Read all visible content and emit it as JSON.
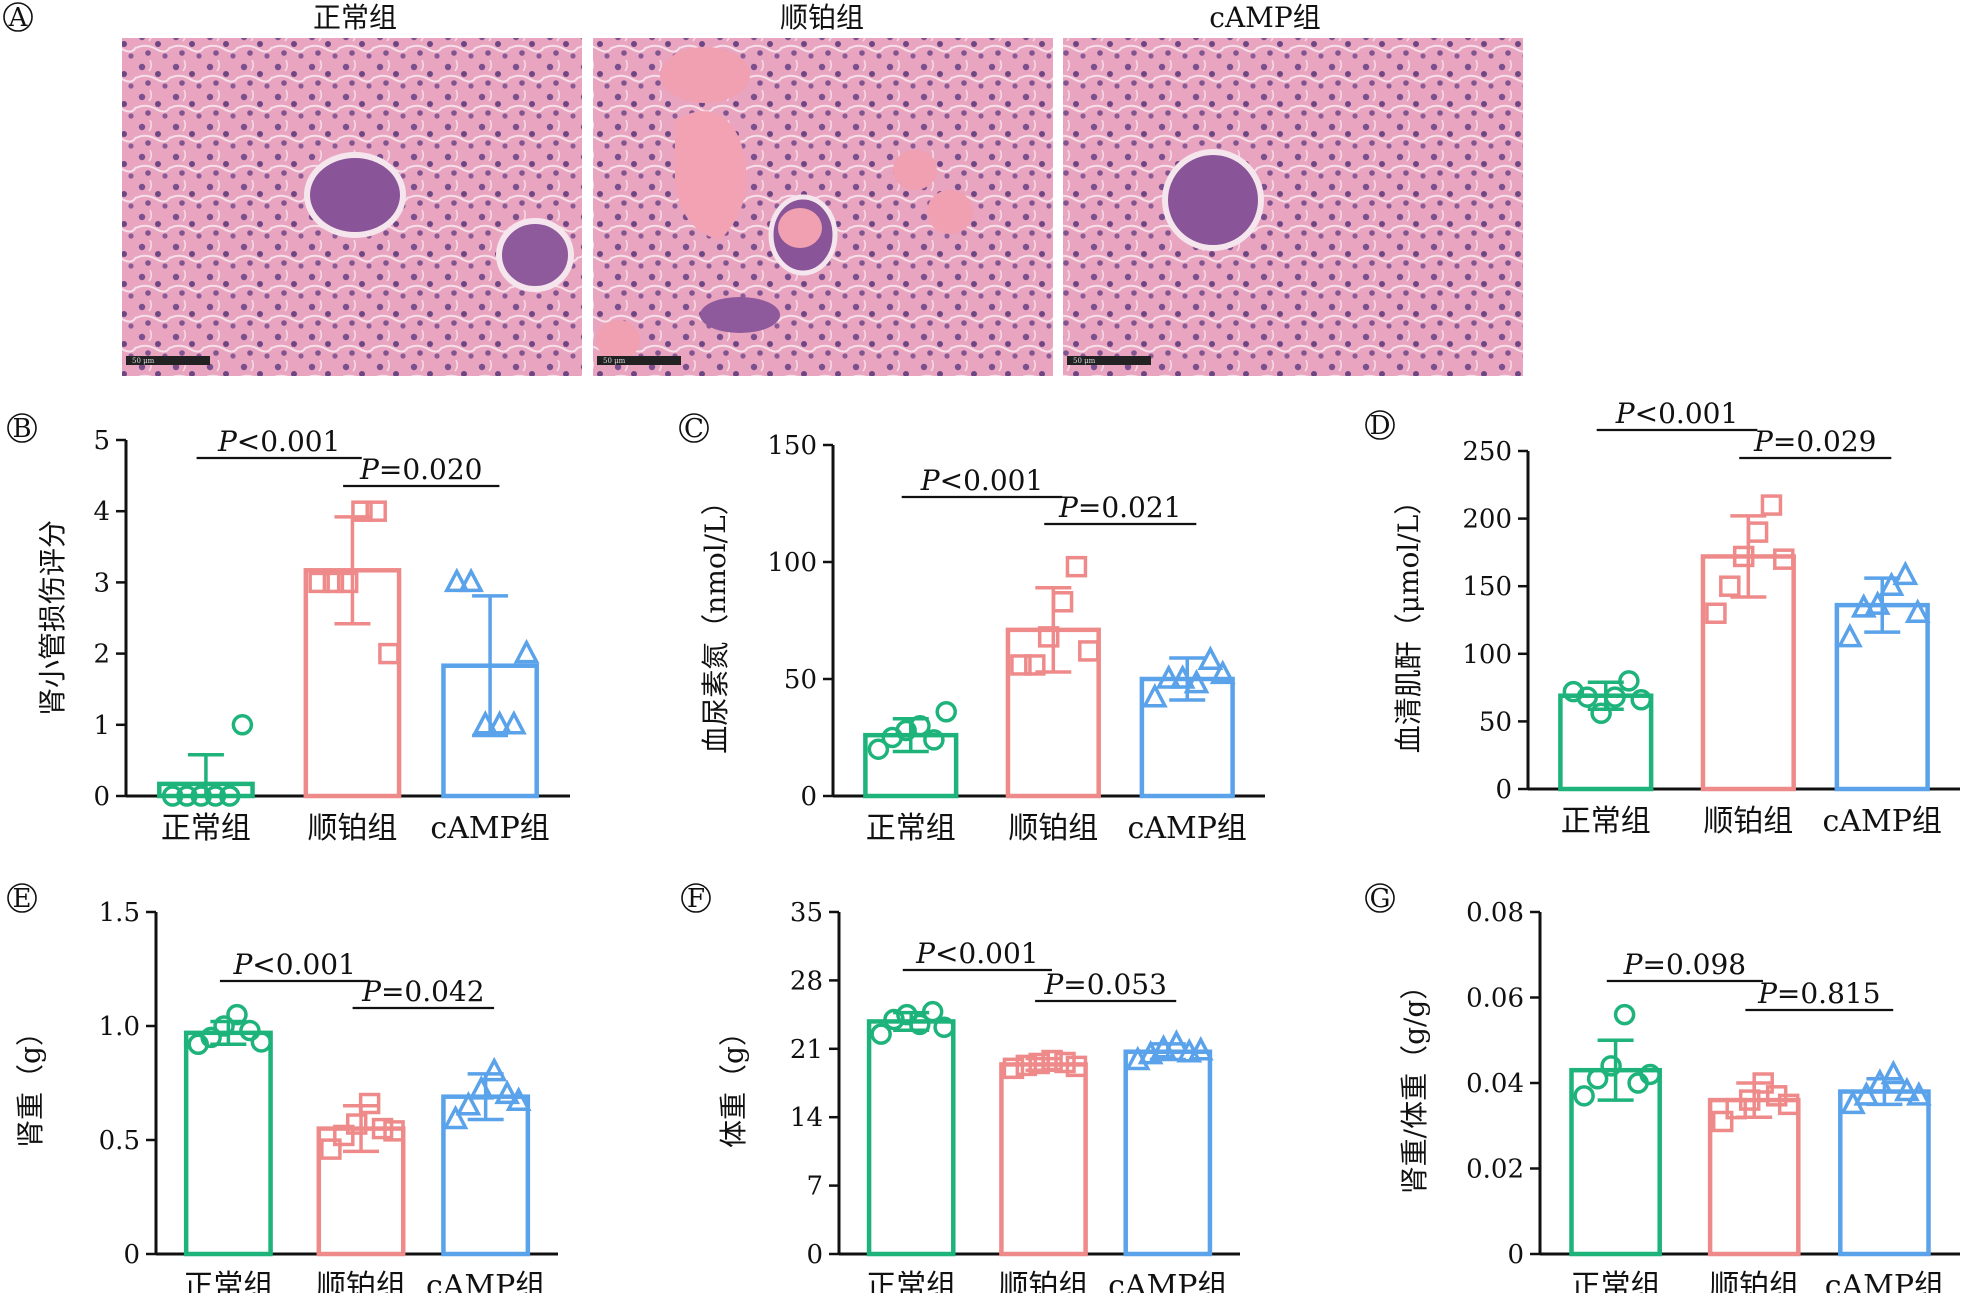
{
  "panel_a": {
    "letter": "A",
    "titles": [
      "正常组",
      "顺铂组",
      "cAMP组"
    ],
    "scale_bar_label": "50 μm"
  },
  "colors": {
    "normal": "#1db37a",
    "cisplatin": "#ef8a8a",
    "camp": "#5aa2ea"
  },
  "chart_data": [
    {
      "id": "B",
      "letter": "B",
      "type": "bar",
      "ylabel": "肾小管损伤评分",
      "categories": [
        "正常组",
        "顺铂组",
        "cAMP组"
      ],
      "ylim": [
        0,
        5
      ],
      "yticks": [
        0,
        1,
        2,
        3,
        4,
        5
      ],
      "values": [
        0.17,
        3.17,
        1.83
      ],
      "errors": [
        0.41,
        0.75,
        0.98
      ],
      "points": [
        [
          0,
          0,
          0,
          0,
          0,
          1
        ],
        [
          3,
          3,
          3,
          4,
          4,
          2
        ],
        [
          3,
          3,
          1,
          1,
          1,
          2
        ]
      ],
      "markers": [
        "circle",
        "square",
        "triangle"
      ],
      "comparisons": [
        {
          "from": 0,
          "to": 1,
          "level": 0,
          "italic": "P",
          "text": "<0.001"
        },
        {
          "from": 1,
          "to": 2,
          "level": 1,
          "italic": "P",
          "text": "=0.020"
        }
      ]
    },
    {
      "id": "C",
      "letter": "C",
      "type": "bar",
      "ylabel": "血尿素氮（nmol/L）",
      "categories": [
        "正常组",
        "顺铂组",
        "cAMP组"
      ],
      "ylim": [
        0,
        150
      ],
      "yticks": [
        0,
        50,
        100,
        150
      ],
      "values": [
        26,
        71,
        50
      ],
      "errors": [
        7,
        18,
        9
      ],
      "points": [
        [
          20,
          25,
          28,
          30,
          24,
          36
        ],
        [
          56,
          56,
          68,
          83,
          98,
          62
        ],
        [
          42,
          50,
          50,
          48,
          58,
          52
        ]
      ],
      "markers": [
        "circle",
        "square",
        "triangle"
      ],
      "comparisons": [
        {
          "from": 0,
          "to": 1,
          "level": 0,
          "italic": "P",
          "text": "<0.001"
        },
        {
          "from": 1,
          "to": 2,
          "level": 1,
          "italic": "P",
          "text": "=0.021"
        }
      ]
    },
    {
      "id": "D",
      "letter": "D",
      "type": "bar",
      "ylabel": "血清肌酐（μmol/L）",
      "categories": [
        "正常组",
        "顺铂组",
        "cAMP组"
      ],
      "ylim": [
        0,
        250
      ],
      "yticks": [
        0,
        50,
        100,
        150,
        200,
        250
      ],
      "values": [
        69,
        172,
        136
      ],
      "errors": [
        10,
        30,
        20
      ],
      "points": [
        [
          72,
          68,
          56,
          68,
          80,
          66
        ],
        [
          130,
          150,
          172,
          190,
          210,
          170
        ],
        [
          112,
          134,
          136,
          150,
          158,
          130
        ]
      ],
      "markers": [
        "circle",
        "square",
        "triangle"
      ],
      "comparisons": [
        {
          "from": 0,
          "to": 1,
          "level": 0,
          "italic": "P",
          "text": "<0.001"
        },
        {
          "from": 1,
          "to": 2,
          "level": 1,
          "italic": "P",
          "text": "=0.029"
        }
      ]
    },
    {
      "id": "E",
      "letter": "E",
      "type": "bar",
      "ylabel": "肾重（g）",
      "categories": [
        "正常组",
        "顺铂组",
        "cAMP组"
      ],
      "ylim": [
        0,
        1.5
      ],
      "yticks": [
        0,
        0.5,
        1.0,
        1.5
      ],
      "ytick_labels": [
        "0",
        "0.5",
        "1.0",
        "1.5"
      ],
      "values": [
        0.97,
        0.55,
        0.69
      ],
      "errors": [
        0.05,
        0.1,
        0.1
      ],
      "points": [
        [
          0.92,
          0.95,
          1.0,
          1.05,
          0.98,
          0.93
        ],
        [
          0.46,
          0.52,
          0.57,
          0.66,
          0.55,
          0.54
        ],
        [
          0.59,
          0.65,
          0.72,
          0.8,
          0.7,
          0.67
        ]
      ],
      "markers": [
        "circle",
        "square",
        "triangle"
      ],
      "comparisons": [
        {
          "from": 0,
          "to": 1,
          "level": 0,
          "italic": "P",
          "text": "<0.001"
        },
        {
          "from": 1,
          "to": 2,
          "level": 1,
          "italic": "P",
          "text": "=0.042"
        }
      ]
    },
    {
      "id": "F",
      "letter": "F",
      "type": "bar",
      "ylabel": "体重（g）",
      "categories": [
        "正常组",
        "顺铂组",
        "cAMP组"
      ],
      "ylim": [
        0,
        35
      ],
      "yticks": [
        0,
        7,
        14,
        21,
        28,
        35
      ],
      "values": [
        23.8,
        19.4,
        20.7
      ],
      "errors": [
        0.9,
        0.6,
        0.8
      ],
      "points": [
        [
          22.5,
          24,
          24.5,
          23.5,
          24.8,
          23.2
        ],
        [
          19,
          19.3,
          19.5,
          19.8,
          19.6,
          19.2
        ],
        [
          19.8,
          20.4,
          21,
          21.5,
          20.6,
          20.8
        ]
      ],
      "markers": [
        "circle",
        "square",
        "triangle"
      ],
      "comparisons": [
        {
          "from": 0,
          "to": 1,
          "level": 0,
          "italic": "P",
          "text": "<0.001"
        },
        {
          "from": 1,
          "to": 2,
          "level": 1,
          "italic": "P",
          "text": "=0.053"
        }
      ]
    },
    {
      "id": "G",
      "letter": "G",
      "type": "bar",
      "ylabel": "肾重/体重（g/g）",
      "categories": [
        "正常组",
        "顺铂组",
        "cAMP组"
      ],
      "ylim": [
        0,
        0.08
      ],
      "yticks": [
        0,
        0.02,
        0.04,
        0.06,
        0.08
      ],
      "ytick_labels": [
        "0",
        "0.02",
        "0.04",
        "0.06",
        "0.08"
      ],
      "values": [
        0.043,
        0.036,
        0.038
      ],
      "errors": [
        0.007,
        0.004,
        0.003
      ],
      "points": [
        [
          0.037,
          0.041,
          0.044,
          0.056,
          0.04,
          0.042
        ],
        [
          0.031,
          0.034,
          0.036,
          0.04,
          0.037,
          0.035
        ],
        [
          0.035,
          0.037,
          0.04,
          0.042,
          0.038,
          0.037
        ]
      ],
      "markers": [
        "circle",
        "square",
        "triangle"
      ],
      "comparisons": [
        {
          "from": 0,
          "to": 1,
          "level": 0,
          "italic": "P",
          "text": "=0.098"
        },
        {
          "from": 1,
          "to": 2,
          "level": 1,
          "italic": "P",
          "text": "=0.815"
        }
      ]
    }
  ]
}
